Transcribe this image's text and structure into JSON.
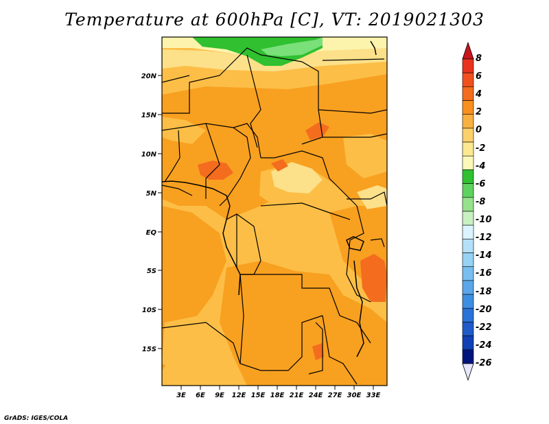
{
  "title": "Temperature at 600hPa [C], VT: 2019021303",
  "credit": "GrADS: IGES/COLA",
  "lat_ticks": [
    "20N",
    "15N",
    "10N",
    "5N",
    "EQ",
    "5S",
    "10S",
    "15S"
  ],
  "lon_ticks": [
    "3E",
    "6E",
    "9E",
    "12E",
    "15E",
    "18E",
    "21E",
    "24E",
    "27E",
    "30E",
    "33E"
  ],
  "colorbar": {
    "labels": [
      "8",
      "6",
      "4",
      "2",
      "0",
      "-2",
      "-4",
      "-6",
      "-8",
      "-10",
      "-12",
      "-14",
      "-16",
      "-18",
      "-20",
      "-22",
      "-24",
      "-26"
    ],
    "colors": [
      "#e8321e",
      "#f0501e",
      "#f46c1e",
      "#f89020",
      "#f8b040",
      "#fcd06a",
      "#fce890",
      "#fcf8b8",
      "#30c030",
      "#5ed25e",
      "#96e28c",
      "#c8f0c0",
      "#dcf4ff",
      "#b4e0fa",
      "#96d2f4",
      "#78bef0",
      "#5aa6e8",
      "#3c8ee0",
      "#2872d8",
      "#1e5ac8",
      "#1040b4",
      "#00147c"
    ]
  },
  "colors": {
    "warm_2_4": "#f8a020",
    "warm_0_2": "#fcbe46",
    "warm_4_6": "#f46c1e",
    "cool_m2_0": "#fce08a",
    "cool_m4_m2": "#fcf4ac",
    "green_m6": "#30c030",
    "green_m8": "#7ae07a"
  }
}
